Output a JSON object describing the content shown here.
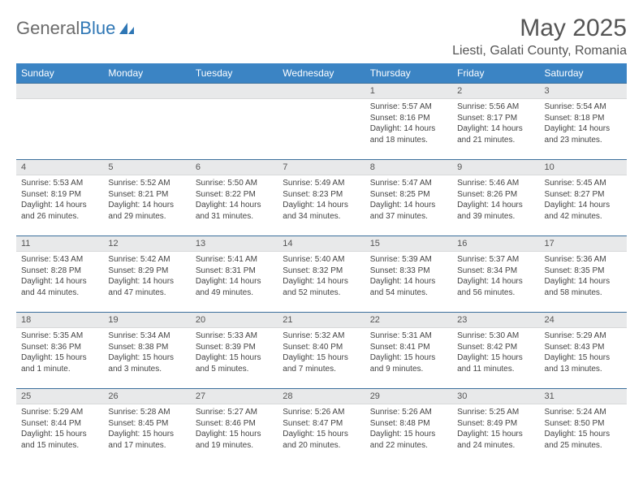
{
  "logo": {
    "text1": "General",
    "text2": "Blue"
  },
  "title": "May 2025",
  "location": "Liesti, Galati County, Romania",
  "colors": {
    "header_bg": "#3b84c4",
    "header_text": "#ffffff",
    "daynum_bg": "#e8e9ea",
    "row_border": "#3b6f9c",
    "logo_gray": "#6b6b6b",
    "logo_blue": "#2f77b5"
  },
  "weekdays": [
    "Sunday",
    "Monday",
    "Tuesday",
    "Wednesday",
    "Thursday",
    "Friday",
    "Saturday"
  ],
  "weeks": [
    [
      {
        "n": "",
        "sr": "",
        "ss": "",
        "dl": ""
      },
      {
        "n": "",
        "sr": "",
        "ss": "",
        "dl": ""
      },
      {
        "n": "",
        "sr": "",
        "ss": "",
        "dl": ""
      },
      {
        "n": "",
        "sr": "",
        "ss": "",
        "dl": ""
      },
      {
        "n": "1",
        "sr": "5:57 AM",
        "ss": "8:16 PM",
        "dl": "14 hours and 18 minutes."
      },
      {
        "n": "2",
        "sr": "5:56 AM",
        "ss": "8:17 PM",
        "dl": "14 hours and 21 minutes."
      },
      {
        "n": "3",
        "sr": "5:54 AM",
        "ss": "8:18 PM",
        "dl": "14 hours and 23 minutes."
      }
    ],
    [
      {
        "n": "4",
        "sr": "5:53 AM",
        "ss": "8:19 PM",
        "dl": "14 hours and 26 minutes."
      },
      {
        "n": "5",
        "sr": "5:52 AM",
        "ss": "8:21 PM",
        "dl": "14 hours and 29 minutes."
      },
      {
        "n": "6",
        "sr": "5:50 AM",
        "ss": "8:22 PM",
        "dl": "14 hours and 31 minutes."
      },
      {
        "n": "7",
        "sr": "5:49 AM",
        "ss": "8:23 PM",
        "dl": "14 hours and 34 minutes."
      },
      {
        "n": "8",
        "sr": "5:47 AM",
        "ss": "8:25 PM",
        "dl": "14 hours and 37 minutes."
      },
      {
        "n": "9",
        "sr": "5:46 AM",
        "ss": "8:26 PM",
        "dl": "14 hours and 39 minutes."
      },
      {
        "n": "10",
        "sr": "5:45 AM",
        "ss": "8:27 PM",
        "dl": "14 hours and 42 minutes."
      }
    ],
    [
      {
        "n": "11",
        "sr": "5:43 AM",
        "ss": "8:28 PM",
        "dl": "14 hours and 44 minutes."
      },
      {
        "n": "12",
        "sr": "5:42 AM",
        "ss": "8:29 PM",
        "dl": "14 hours and 47 minutes."
      },
      {
        "n": "13",
        "sr": "5:41 AM",
        "ss": "8:31 PM",
        "dl": "14 hours and 49 minutes."
      },
      {
        "n": "14",
        "sr": "5:40 AM",
        "ss": "8:32 PM",
        "dl": "14 hours and 52 minutes."
      },
      {
        "n": "15",
        "sr": "5:39 AM",
        "ss": "8:33 PM",
        "dl": "14 hours and 54 minutes."
      },
      {
        "n": "16",
        "sr": "5:37 AM",
        "ss": "8:34 PM",
        "dl": "14 hours and 56 minutes."
      },
      {
        "n": "17",
        "sr": "5:36 AM",
        "ss": "8:35 PM",
        "dl": "14 hours and 58 minutes."
      }
    ],
    [
      {
        "n": "18",
        "sr": "5:35 AM",
        "ss": "8:36 PM",
        "dl": "15 hours and 1 minute."
      },
      {
        "n": "19",
        "sr": "5:34 AM",
        "ss": "8:38 PM",
        "dl": "15 hours and 3 minutes."
      },
      {
        "n": "20",
        "sr": "5:33 AM",
        "ss": "8:39 PM",
        "dl": "15 hours and 5 minutes."
      },
      {
        "n": "21",
        "sr": "5:32 AM",
        "ss": "8:40 PM",
        "dl": "15 hours and 7 minutes."
      },
      {
        "n": "22",
        "sr": "5:31 AM",
        "ss": "8:41 PM",
        "dl": "15 hours and 9 minutes."
      },
      {
        "n": "23",
        "sr": "5:30 AM",
        "ss": "8:42 PM",
        "dl": "15 hours and 11 minutes."
      },
      {
        "n": "24",
        "sr": "5:29 AM",
        "ss": "8:43 PM",
        "dl": "15 hours and 13 minutes."
      }
    ],
    [
      {
        "n": "25",
        "sr": "5:29 AM",
        "ss": "8:44 PM",
        "dl": "15 hours and 15 minutes."
      },
      {
        "n": "26",
        "sr": "5:28 AM",
        "ss": "8:45 PM",
        "dl": "15 hours and 17 minutes."
      },
      {
        "n": "27",
        "sr": "5:27 AM",
        "ss": "8:46 PM",
        "dl": "15 hours and 19 minutes."
      },
      {
        "n": "28",
        "sr": "5:26 AM",
        "ss": "8:47 PM",
        "dl": "15 hours and 20 minutes."
      },
      {
        "n": "29",
        "sr": "5:26 AM",
        "ss": "8:48 PM",
        "dl": "15 hours and 22 minutes."
      },
      {
        "n": "30",
        "sr": "5:25 AM",
        "ss": "8:49 PM",
        "dl": "15 hours and 24 minutes."
      },
      {
        "n": "31",
        "sr": "5:24 AM",
        "ss": "8:50 PM",
        "dl": "15 hours and 25 minutes."
      }
    ]
  ],
  "labels": {
    "sunrise": "Sunrise:",
    "sunset": "Sunset:",
    "daylight": "Daylight:"
  }
}
